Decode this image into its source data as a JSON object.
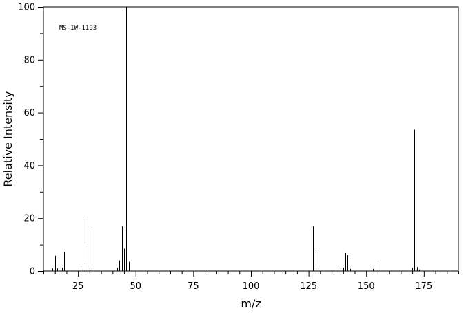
{
  "chart_data": {
    "type": "bar",
    "annotation": "MS-IW-1193",
    "xlabel": "m/z",
    "ylabel": "Relative Intensity",
    "xlim": [
      10,
      190
    ],
    "ylim": [
      0,
      100
    ],
    "x_ticks": [
      25,
      50,
      75,
      100,
      125,
      150,
      175
    ],
    "y_ticks": [
      0,
      20,
      40,
      60,
      80,
      100
    ],
    "grid": false,
    "peaks": [
      {
        "mz": 14,
        "intensity": 1.0
      },
      {
        "mz": 15,
        "intensity": 5.8
      },
      {
        "mz": 16,
        "intensity": 1.0
      },
      {
        "mz": 18,
        "intensity": 1.3
      },
      {
        "mz": 19,
        "intensity": 7.2
      },
      {
        "mz": 26,
        "intensity": 2.0
      },
      {
        "mz": 27,
        "intensity": 20.5
      },
      {
        "mz": 28,
        "intensity": 4.0
      },
      {
        "mz": 29,
        "intensity": 9.5
      },
      {
        "mz": 30,
        "intensity": 1.0
      },
      {
        "mz": 31,
        "intensity": 16.0
      },
      {
        "mz": 42,
        "intensity": 1.2
      },
      {
        "mz": 43,
        "intensity": 4.0
      },
      {
        "mz": 44,
        "intensity": 17.0
      },
      {
        "mz": 45,
        "intensity": 8.5
      },
      {
        "mz": 46,
        "intensity": 100.0
      },
      {
        "mz": 47,
        "intensity": 3.5
      },
      {
        "mz": 127,
        "intensity": 17.0
      },
      {
        "mz": 128,
        "intensity": 7.0
      },
      {
        "mz": 129,
        "intensity": 1.0
      },
      {
        "mz": 139,
        "intensity": 1.0
      },
      {
        "mz": 140,
        "intensity": 1.3
      },
      {
        "mz": 141,
        "intensity": 6.8
      },
      {
        "mz": 142,
        "intensity": 6.0
      },
      {
        "mz": 143,
        "intensity": 0.8
      },
      {
        "mz": 153,
        "intensity": 0.8
      },
      {
        "mz": 155,
        "intensity": 3.0
      },
      {
        "mz": 170,
        "intensity": 1.2
      },
      {
        "mz": 171,
        "intensity": 53.5
      },
      {
        "mz": 172,
        "intensity": 1.5
      },
      {
        "mz": 173,
        "intensity": 0.6
      }
    ]
  }
}
